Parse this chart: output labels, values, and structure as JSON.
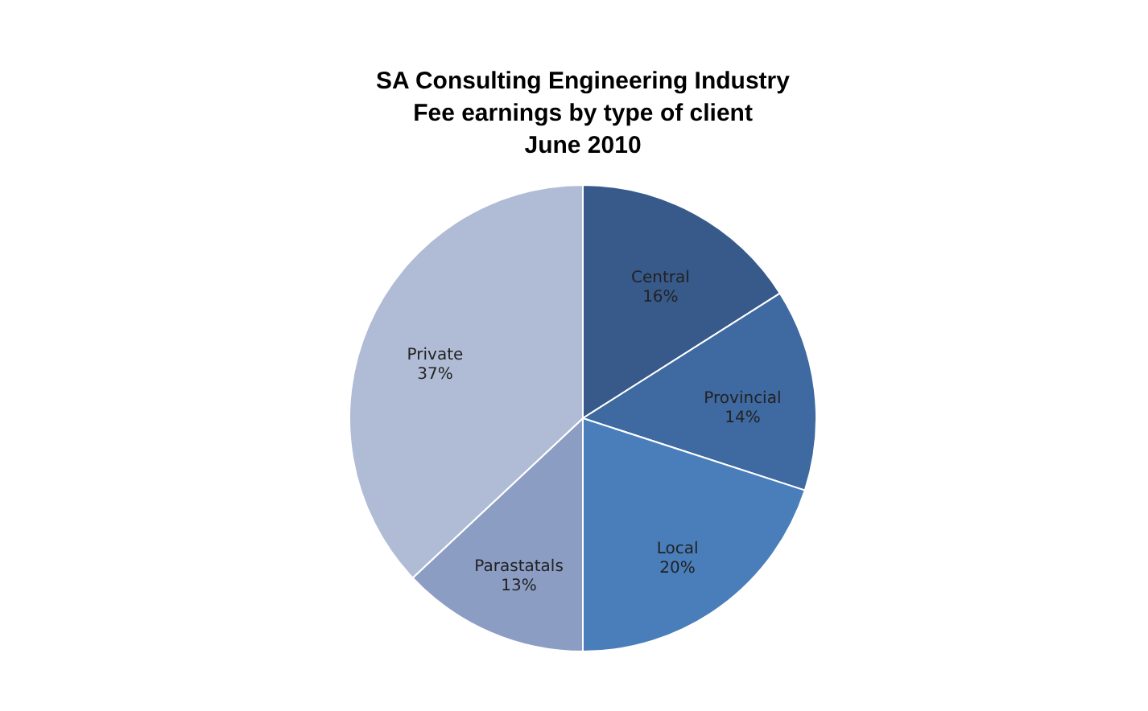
{
  "chart_data": {
    "type": "pie",
    "title": "SA Consulting Engineering Industry\nFee earnings by type of client\nJune 2010",
    "categories": [
      "Central",
      "Provincial",
      "Local",
      "Parastatals",
      "Private"
    ],
    "values": [
      16,
      14,
      20,
      13,
      37
    ],
    "value_labels": [
      "16%",
      "14%",
      "20%",
      "13%",
      "37%"
    ],
    "colors": [
      "#375a8a",
      "#3e69a1",
      "#4a7ebb",
      "#8b9dc3",
      "#b0bcd6"
    ]
  }
}
